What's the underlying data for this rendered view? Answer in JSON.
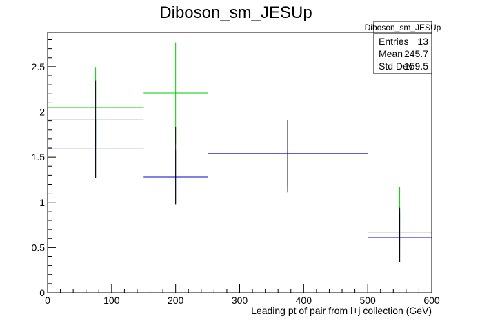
{
  "chart_data": {
    "type": "scatter",
    "title": "Diboson_sm_JESUp",
    "xlabel": "Leading pt of pair from l+j collection (GeV)",
    "ylabel": "",
    "xlim": [
      0,
      600
    ],
    "ylim": [
      0,
      2.88
    ],
    "xticks": [
      "0",
      "100",
      "200",
      "300",
      "400",
      "500",
      "600"
    ],
    "yticks": [
      "0",
      "0.5",
      "1",
      "1.5",
      "2",
      "2.5"
    ],
    "grid": false,
    "stats_box": {
      "title": "Diboson_sm_JESUp",
      "rows": [
        {
          "label": "Entries",
          "value": "13"
        },
        {
          "label": "Mean",
          "value": "245.7"
        },
        {
          "label": "Std Dev",
          "value": "159.5"
        }
      ]
    },
    "series": [
      {
        "color": "#00cc00",
        "points": [
          {
            "x": 75,
            "xlo": 0,
            "xhi": 150,
            "y": 2.05,
            "ylo": 1.61,
            "yhi": 2.49
          },
          {
            "x": 200,
            "xlo": 150,
            "xhi": 250,
            "y": 2.21,
            "ylo": 1.65,
            "yhi": 2.77
          },
          {
            "x": 375,
            "xlo": 250,
            "xhi": 500,
            "y": 1.49,
            "ylo": 1.11,
            "yhi": 1.91
          },
          {
            "x": 550,
            "xlo": 500,
            "xhi": 600,
            "y": 0.85,
            "ylo": 0.53,
            "yhi": 1.17
          }
        ]
      },
      {
        "color": "#0000cc",
        "points": [
          {
            "x": 75,
            "xlo": 0,
            "xhi": 150,
            "y": 1.59,
            "ylo": 1.27,
            "yhi": 1.91
          },
          {
            "x": 200,
            "xlo": 150,
            "xhi": 250,
            "y": 1.28,
            "ylo": 0.98,
            "yhi": 1.58
          },
          {
            "x": 375,
            "xlo": 250,
            "xhi": 500,
            "y": 1.54,
            "ylo": 1.17,
            "yhi": 1.91
          },
          {
            "x": 550,
            "xlo": 500,
            "xhi": 600,
            "y": 0.61,
            "ylo": 0.34,
            "yhi": 0.88
          }
        ]
      },
      {
        "color": "#000000",
        "points": [
          {
            "x": 75,
            "xlo": 0,
            "xhi": 150,
            "y": 1.91,
            "ylo": 1.27,
            "yhi": 2.35
          },
          {
            "x": 200,
            "xlo": 150,
            "xhi": 250,
            "y": 1.49,
            "ylo": 0.98,
            "yhi": 1.83
          },
          {
            "x": 375,
            "xlo": 250,
            "xhi": 500,
            "y": 1.49,
            "ylo": 1.11,
            "yhi": 1.91
          },
          {
            "x": 550,
            "xlo": 500,
            "xhi": 600,
            "y": 0.66,
            "ylo": 0.34,
            "yhi": 0.94
          }
        ]
      }
    ]
  }
}
